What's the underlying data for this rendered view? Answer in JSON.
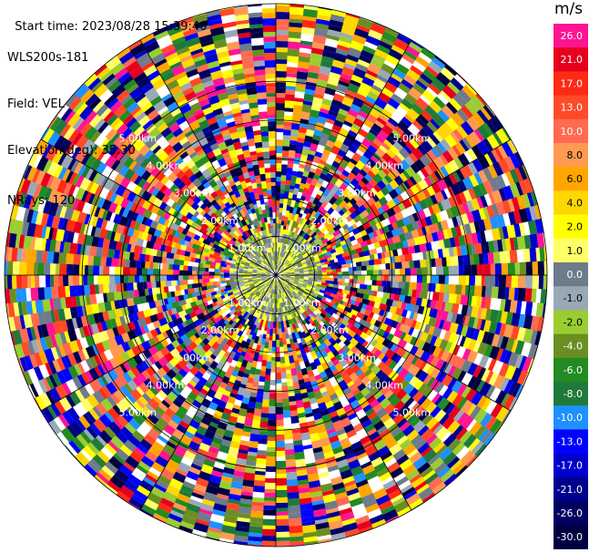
{
  "header": {
    "start_time": "Start time: 2023/08/28 15:39:40",
    "instrument": "WLS200s-181",
    "field": "Field: VEL",
    "elevation": "Elevation(deg): 35.30",
    "nrays": "NRays: 120"
  },
  "chart_data": {
    "type": "heatmap",
    "projection": "polar-ppi",
    "field": "VEL",
    "units": "m/s",
    "n_rays": 120,
    "range_rings_km": [
      {
        "value": 1.0,
        "label": "1.00km"
      },
      {
        "value": 2.0,
        "label": "2.00km"
      },
      {
        "value": 3.0,
        "label": "3.00km"
      },
      {
        "value": 4.0,
        "label": "4.00km"
      },
      {
        "value": 5.0,
        "label": "5.00km"
      }
    ],
    "max_range_km": 7.0,
    "near_field_range_km": 1.15,
    "colorbar": {
      "title": "m/s",
      "entries": [
        {
          "label": "26.0",
          "color": "#ff1493"
        },
        {
          "label": "21.0",
          "color": "#e6001e"
        },
        {
          "label": "17.0",
          "color": "#ff2a14"
        },
        {
          "label": "13.0",
          "color": "#ff4a2a"
        },
        {
          "label": "10.0",
          "color": "#ff6a50"
        },
        {
          "label": "8.0",
          "color": "#ff9a50"
        },
        {
          "label": "6.0",
          "color": "#ffa500"
        },
        {
          "label": "4.0",
          "color": "#ffd700"
        },
        {
          "label": "2.0",
          "color": "#ffff00"
        },
        {
          "label": "1.0",
          "color": "#ffff66"
        },
        {
          "label": "0.0",
          "color": "#6e7b8b"
        },
        {
          "label": "-1.0",
          "color": "#9aa8b6"
        },
        {
          "label": "-2.0",
          "color": "#9acd32"
        },
        {
          "label": "-4.0",
          "color": "#6b8e23"
        },
        {
          "label": "-6.0",
          "color": "#228b22"
        },
        {
          "label": "-8.0",
          "color": "#1f7a3a"
        },
        {
          "label": "-10.0",
          "color": "#1e90ff"
        },
        {
          "label": "-13.0",
          "color": "#0000ff"
        },
        {
          "label": "-17.0",
          "color": "#0000cd"
        },
        {
          "label": "-21.0",
          "color": "#00008b"
        },
        {
          "label": "-26.0",
          "color": "#000060"
        },
        {
          "label": "-30.0",
          "color": "#000040"
        }
      ]
    }
  }
}
